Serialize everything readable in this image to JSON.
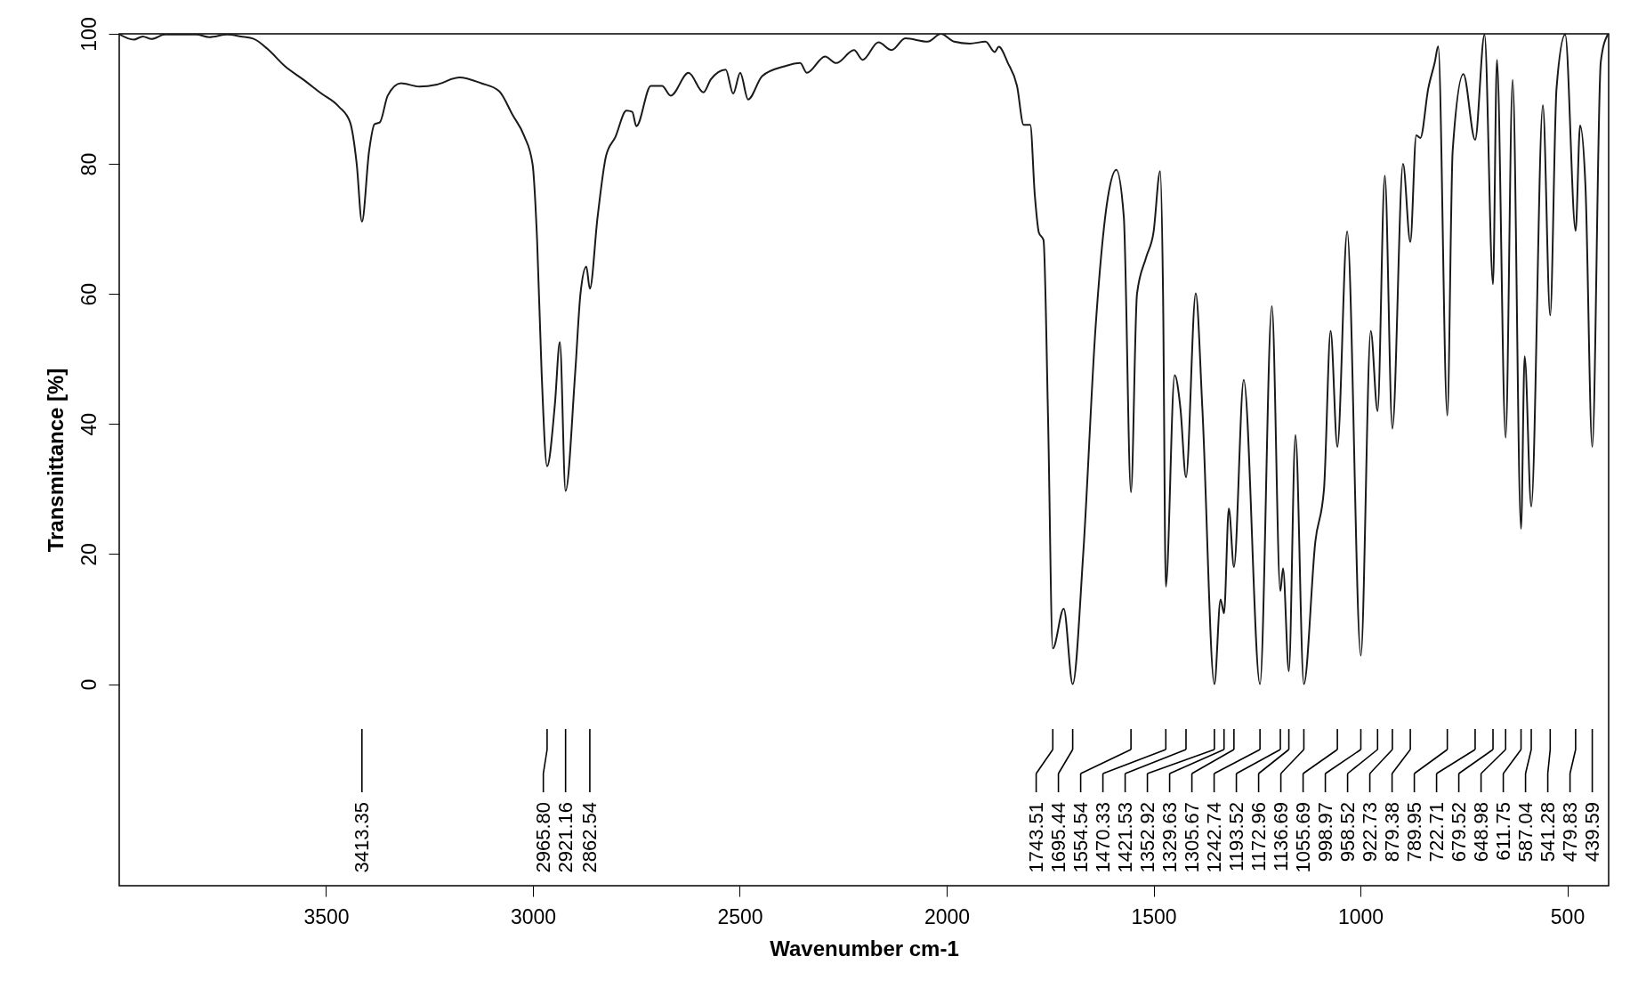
{
  "chart_data": {
    "type": "line",
    "xlabel": "Wavenumber cm-1",
    "ylabel": "Transmittance [%]",
    "xlim": [
      4000,
      400
    ],
    "ylim": [
      -31,
      100
    ],
    "xticks": [
      3500,
      3000,
      2500,
      2000,
      1500,
      1000,
      500
    ],
    "yticks": [
      0,
      20,
      40,
      60,
      80,
      100
    ],
    "series": [
      {
        "color": "#1a1a1a",
        "x": [
          3999,
          3965,
          3943,
          3922,
          3890,
          3814,
          3782,
          3739,
          3706,
          3674,
          3642,
          3599,
          3556,
          3513,
          3469,
          3442,
          3426,
          3413.35,
          3396,
          3383,
          3370,
          3351,
          3319,
          3275,
          3232,
          3178,
          3125,
          3082,
          3049,
          3022,
          3001,
          2990,
          2979,
          2965.8,
          2947,
          2935,
          2921.16,
          2898,
          2885,
          2871,
          2862.54,
          2844,
          2823,
          2801,
          2774,
          2760,
          2750,
          2715,
          2688,
          2667,
          2624,
          2588,
          2570,
          2534,
          2516,
          2499,
          2480,
          2446,
          2392,
          2354,
          2338,
          2294,
          2267,
          2224,
          2203,
          2165,
          2133,
          2100,
          2046,
          2014,
          1982,
          1944,
          1906,
          1884,
          1874,
          1852,
          1830,
          1814,
          1798,
          1787,
          1777,
          1766,
          1755,
          1743.51,
          1717,
          1695.44,
          1670,
          1640,
          1610,
          1590,
          1572,
          1554.54,
          1540,
          1518,
          1500,
          1484,
          1477,
          1470.33,
          1449,
          1435,
          1421.53,
          1398,
          1382,
          1352.92,
          1338,
          1329.63,
          1318,
          1305.67,
          1282,
          1242.74,
          1214,
          1193.52,
          1187,
          1172.96,
          1157,
          1136.69,
          1109,
          1088,
          1072,
          1055.69,
          1032,
          998.97,
          975,
          958.52,
          941,
          922.73,
          897,
          879.38,
          865,
          855,
          836,
          820,
          812,
          789.95,
          777,
          751,
          722.71,
          700,
          679.52,
          670,
          648.98,
          632,
          611.75,
          603,
          587.04,
          559,
          541.28,
          526,
          505,
          479.83,
          469,
          456,
          439.59,
          419,
          403
        ],
        "values": [
          99.9,
          99.1,
          99.6,
          99.2,
          99.9,
          99.9,
          99.5,
          99.9,
          99.6,
          99.2,
          97.7,
          95,
          93,
          90.9,
          88.8,
          86.4,
          80,
          71.1,
          82,
          86.1,
          86.4,
          90.5,
          92.4,
          91.9,
          92.2,
          93.3,
          92.4,
          91.2,
          87.5,
          84.4,
          80,
          68.3,
          47.8,
          33.5,
          43,
          52.6,
          29.7,
          47.8,
          60.1,
          64.2,
          60.8,
          71.7,
          81.3,
          84.1,
          88.2,
          88,
          85.8,
          92,
          92,
          90.5,
          94,
          91,
          93,
          94.5,
          90.8,
          94,
          89.9,
          93.5,
          95,
          95.5,
          94,
          96.5,
          95.5,
          97.5,
          96,
          98.7,
          97.5,
          99.3,
          98.8,
          100,
          98.8,
          98.5,
          98.8,
          97.2,
          98,
          95.5,
          92,
          86,
          86,
          75.2,
          69.4,
          68.3,
          41,
          5.5,
          11.6,
          0,
          20,
          55,
          75,
          79.1,
          72,
          29.5,
          60,
          65.6,
          69.5,
          78.9,
          60,
          15,
          47.5,
          42.4,
          31.8,
          60.1,
          42.4,
          0,
          13,
          10.9,
          27,
          18,
          46.8,
          0,
          58.1,
          14.3,
          17.8,
          2,
          38.3,
          0,
          21.9,
          30,
          54.3,
          36.5,
          69.6,
          4.4,
          54.3,
          42,
          78.2,
          39.3,
          80,
          68,
          84.4,
          84,
          91.6,
          95.7,
          98.1,
          41.3,
          82,
          93.8,
          83.7,
          99.9,
          61.5,
          96,
          37.9,
          92.9,
          23.9,
          50.4,
          27.3,
          89,
          56.7,
          91.6,
          99.9,
          69.7,
          85.9,
          76.5,
          36.5,
          95.7,
          99.8
        ]
      }
    ],
    "annotations": [
      "3413.35",
      "2965.80",
      "2921.16",
      "2862.54",
      "1743.51",
      "1695.44",
      "1554.54",
      "1470.33",
      "1421.53",
      "1352.92",
      "1329.63",
      "1305.67",
      "1242.74",
      "1193.52",
      "1172.96",
      "1136.69",
      "1055.69",
      "998.97",
      "958.52",
      "922.73",
      "879.38",
      "789.95",
      "722.71",
      "679.52",
      "648.98",
      "611.75",
      "587.04",
      "541.28",
      "479.83",
      "439.59"
    ]
  }
}
